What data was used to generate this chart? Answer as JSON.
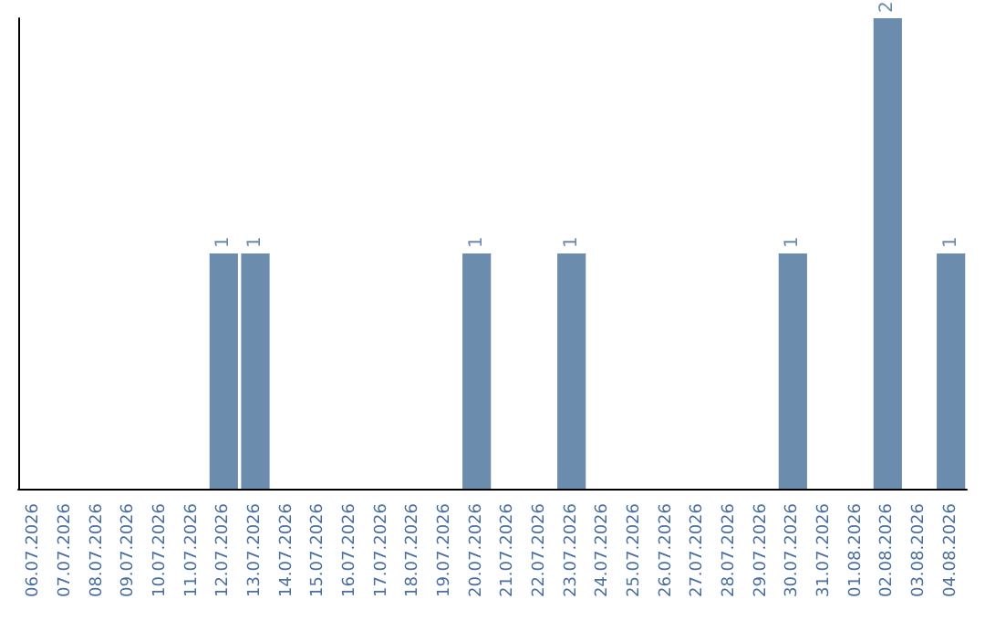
{
  "chart_data": {
    "type": "bar",
    "categories": [
      "06.07.2026",
      "07.07.2026",
      "08.07.2026",
      "09.07.2026",
      "10.07.2026",
      "11.07.2026",
      "12.07.2026",
      "13.07.2026",
      "14.07.2026",
      "15.07.2026",
      "16.07.2026",
      "17.07.2026",
      "18.07.2026",
      "19.07.2026",
      "20.07.2026",
      "21.07.2026",
      "22.07.2026",
      "23.07.2026",
      "24.07.2026",
      "25.07.2026",
      "26.07.2026",
      "27.07.2026",
      "28.07.2026",
      "29.07.2026",
      "30.07.2026",
      "31.07.2026",
      "01.08.2026",
      "02.08.2026",
      "03.08.2026",
      "04.08.2026"
    ],
    "values": [
      0,
      0,
      0,
      0,
      0,
      0,
      1,
      1,
      0,
      0,
      0,
      0,
      0,
      0,
      1,
      0,
      0,
      1,
      0,
      0,
      0,
      0,
      0,
      0,
      1,
      0,
      0,
      2,
      0,
      1
    ],
    "value_labels": [
      null,
      null,
      null,
      null,
      null,
      null,
      "1",
      "1",
      null,
      null,
      null,
      null,
      null,
      null,
      "1",
      null,
      null,
      "1",
      null,
      null,
      null,
      null,
      null,
      null,
      "1",
      null,
      null,
      "2",
      null,
      "1"
    ],
    "color": "#6b8cac",
    "tick_labels": "x"
  }
}
